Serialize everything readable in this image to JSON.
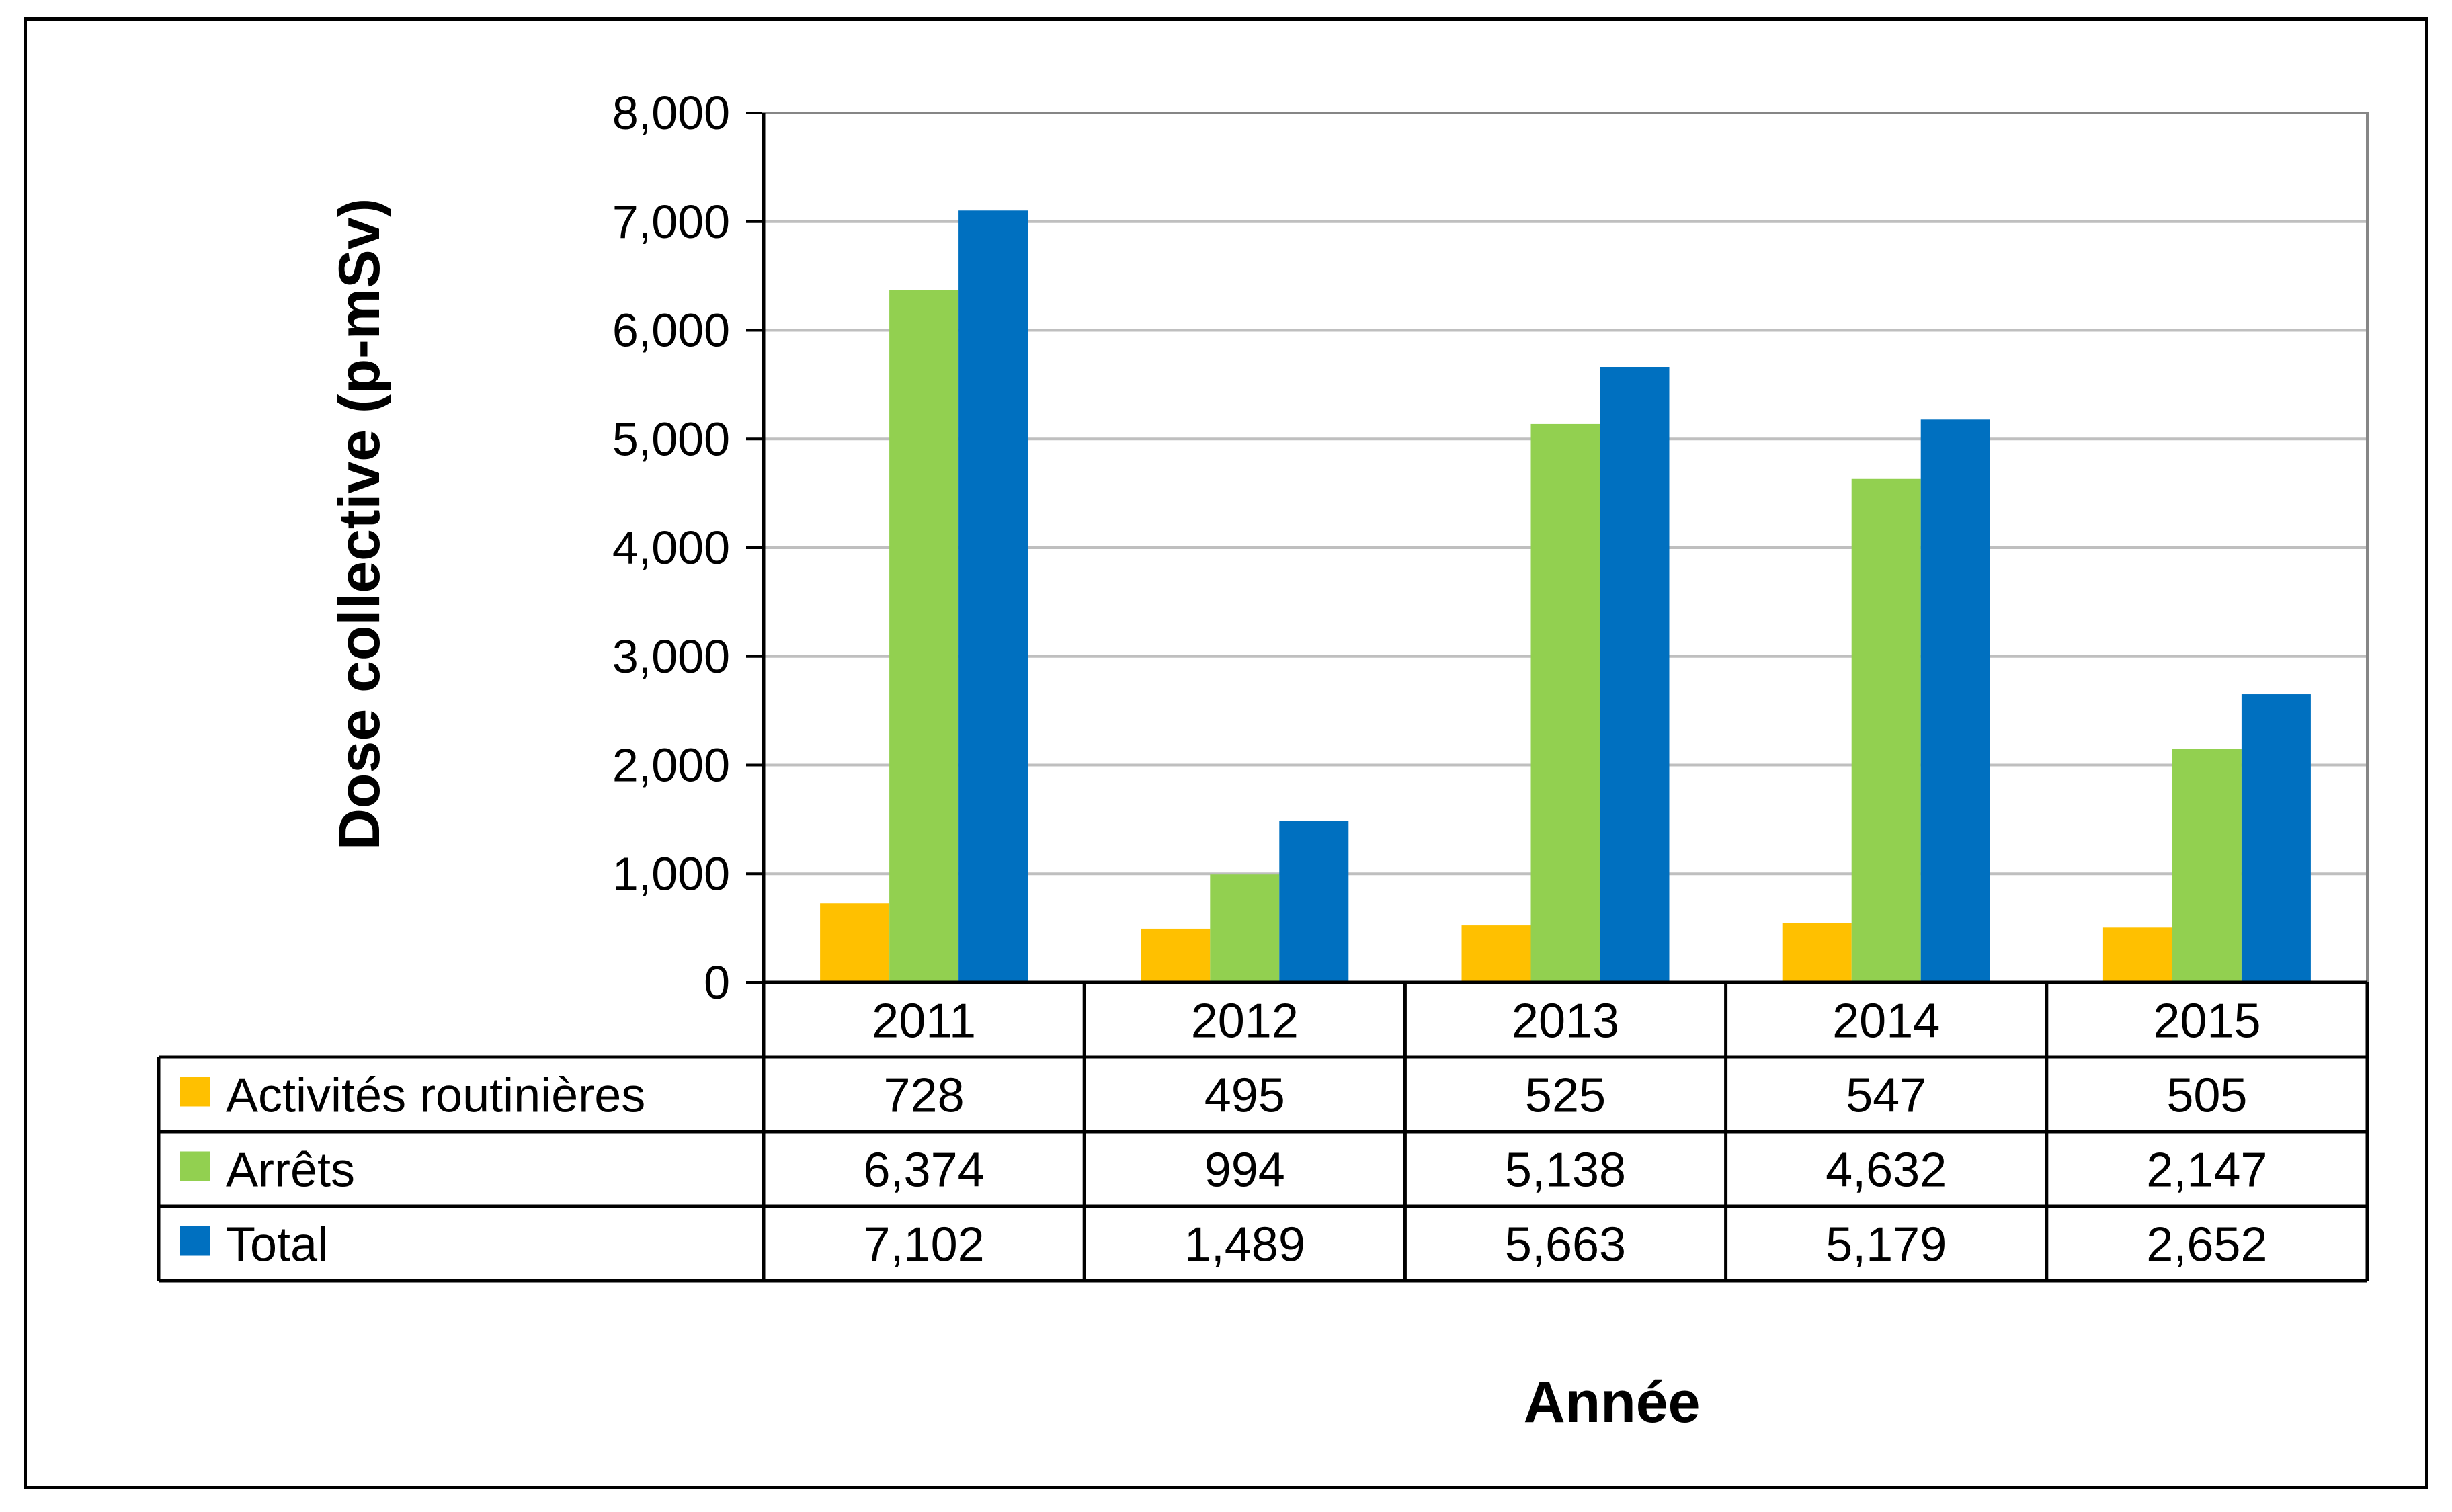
{
  "chart_data": {
    "type": "bar",
    "title": "",
    "xlabel": "Année",
    "ylabel": "Dose collective (p-mSv)",
    "ylim": [
      0,
      8000
    ],
    "yticks": [
      "0",
      "1,000",
      "2,000",
      "3,000",
      "4,000",
      "5,000",
      "6,000",
      "7,000",
      "8,000"
    ],
    "grid": true,
    "legend": "data-table",
    "categories": [
      "2011",
      "2012",
      "2013",
      "2014",
      "2015"
    ],
    "series": [
      {
        "name": "Activités routinières",
        "color": "#FFC000",
        "values": [
          728,
          495,
          525,
          547,
          505
        ],
        "labels": [
          "728",
          "495",
          "525",
          "547",
          "505"
        ]
      },
      {
        "name": "Arrêts",
        "color": "#92D050",
        "values": [
          6374,
          994,
          5138,
          4632,
          2147
        ],
        "labels": [
          "6,374",
          "994",
          "5,138",
          "4,632",
          "2,147"
        ]
      },
      {
        "name": "Total",
        "color": "#0070C0",
        "values": [
          7102,
          1489,
          5663,
          5179,
          2652
        ],
        "labels": [
          "7,102",
          "1,489",
          "5,663",
          "5,179",
          "2,652"
        ]
      }
    ]
  }
}
